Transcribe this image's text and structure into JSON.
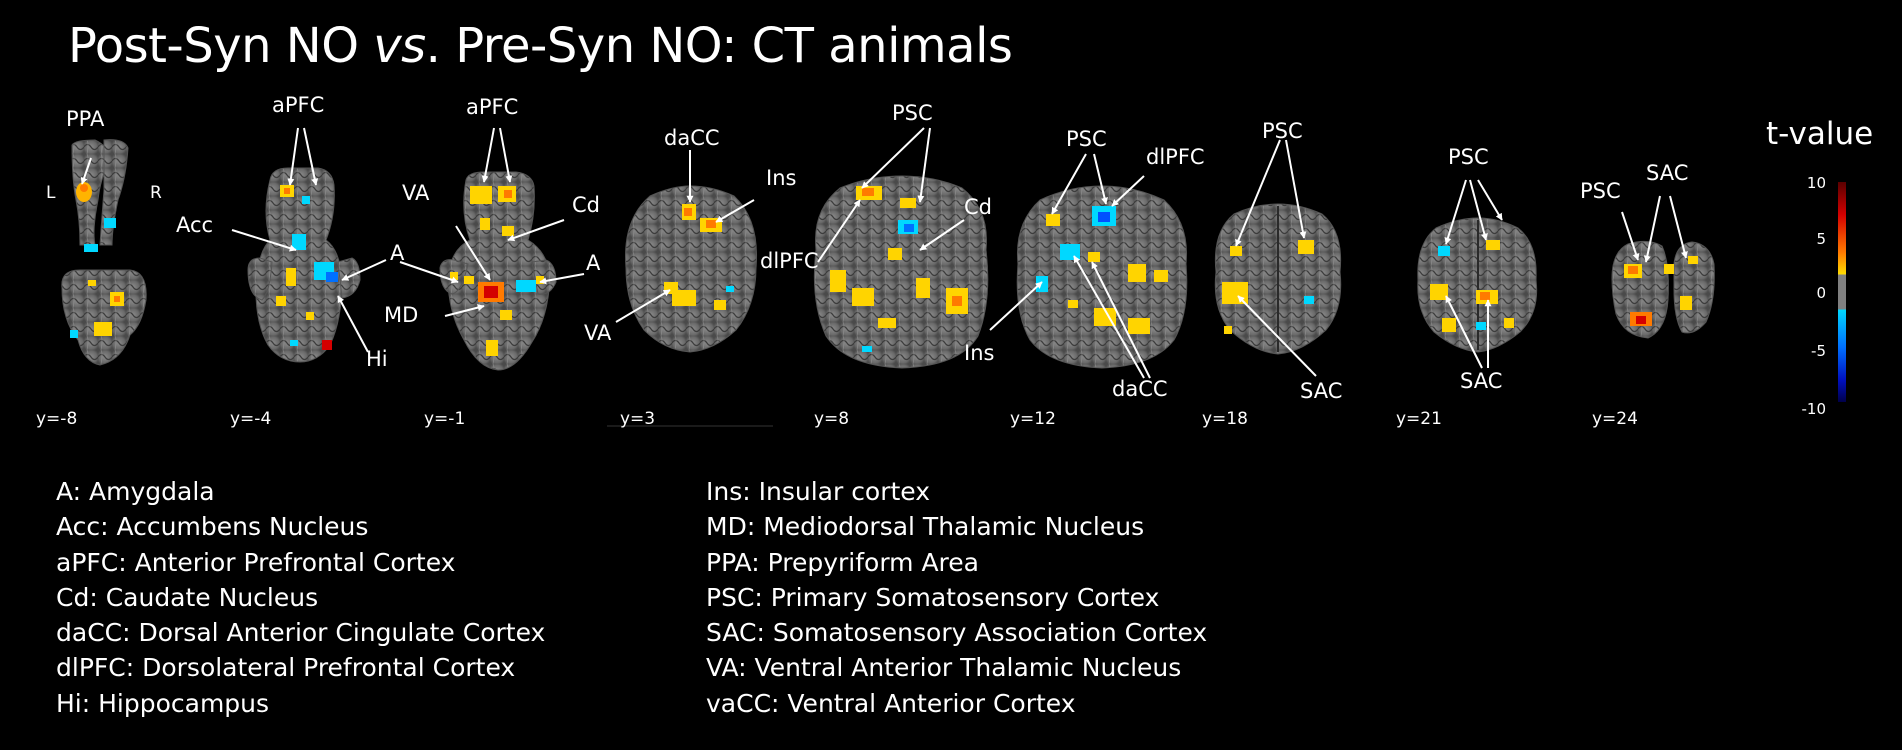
{
  "title": {
    "before": "Post-Syn NO ",
    "italic": "vs",
    "after": ". Pre-Syn NO: CT animals"
  },
  "orientation": {
    "left": "L",
    "right": "R"
  },
  "colorbar": {
    "title": "t-value",
    "ticks": [
      "10",
      "5",
      "0",
      "-5",
      "-10"
    ],
    "colors": {
      "high": "#8a0000",
      "red": "#d40000",
      "orange": "#ff6a00",
      "yellow": "#ffd400",
      "gray": "#808080",
      "cyan": "#00c8ff",
      "blue": "#0050ff",
      "navy": "#00006a"
    }
  },
  "slices": [
    {
      "y_label": "y=-8",
      "labels": [
        "PPA",
        "L",
        "R"
      ]
    },
    {
      "y_label": "y=-4",
      "labels": [
        "aPFC",
        "Acc",
        "A",
        "Hi"
      ]
    },
    {
      "y_label": "y=-1",
      "labels": [
        "aPFC",
        "VA",
        "Cd",
        "A",
        "MD",
        "A"
      ]
    },
    {
      "y_label": "y=3",
      "labels": [
        "daCC",
        "Ins",
        "VA"
      ]
    },
    {
      "y_label": "y=8",
      "labels": [
        "PSC",
        "Cd",
        "dlPFC"
      ]
    },
    {
      "y_label": "y=12",
      "labels": [
        "PSC",
        "dlPFC",
        "Ins",
        "daCC"
      ]
    },
    {
      "y_label": "y=18",
      "labels": [
        "PSC",
        "SAC"
      ]
    },
    {
      "y_label": "y=21",
      "labels": [
        "PSC",
        "SAC"
      ]
    },
    {
      "y_label": "y=24",
      "labels": [
        "PSC",
        "SAC"
      ]
    }
  ],
  "legend_left": [
    "A: Amygdala",
    "Acc: Accumbens Nucleus",
    "aPFC: Anterior Prefrontal Cortex",
    "Cd: Caudate Nucleus",
    "daCC: Dorsal Anterior Cingulate Cortex",
    "dlPFC: Dorsolateral Prefrontal Cortex",
    "Hi: Hippocampus"
  ],
  "legend_right": [
    "Ins: Insular cortex",
    "MD: Mediodorsal Thalamic Nucleus",
    "PPA: Prepyriform Area",
    "PSC: Primary Somatosensory Cortex",
    "SAC: Somatosensory Association Cortex",
    "VA: Ventral Anterior Thalamic Nucleus",
    "vaCC: Ventral Anterior Cortex"
  ]
}
